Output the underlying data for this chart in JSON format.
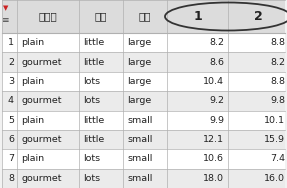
{
  "row_indices": [
    1,
    2,
    3,
    4,
    5,
    6,
    7,
    8
  ],
  "col1": [
    "plain",
    "gourmet",
    "plain",
    "gourmet",
    "plain",
    "gourmet",
    "plain",
    "gourmet"
  ],
  "col2": [
    "little",
    "little",
    "lots",
    "lots",
    "little",
    "little",
    "lots",
    "lots"
  ],
  "col3": [
    "large",
    "large",
    "large",
    "large",
    "small",
    "small",
    "small",
    "small"
  ],
  "col4": [
    "8.2",
    "8.6",
    "10.4",
    "9.2",
    "9.9",
    "12.1",
    "10.6",
    "18.0"
  ],
  "col5": [
    "8.8",
    "8.2",
    "8.8",
    "9.8",
    "10.1",
    "15.9",
    "7.4",
    "16.0"
  ],
  "header_chinese": [
    "爆米花",
    "油量",
    "包型"
  ],
  "header_nums": [
    "1",
    "2"
  ],
  "bg_color": "#f2f2f2",
  "header_bg": "#dcdcdc",
  "stripe_color": "#ffffff",
  "alt_stripe_color": "#ebebeb",
  "grid_color": "#b0b0b0",
  "text_color": "#222222",
  "circle_color": "#333333",
  "icon_red": "#cc2222",
  "icon_dark": "#444444"
}
